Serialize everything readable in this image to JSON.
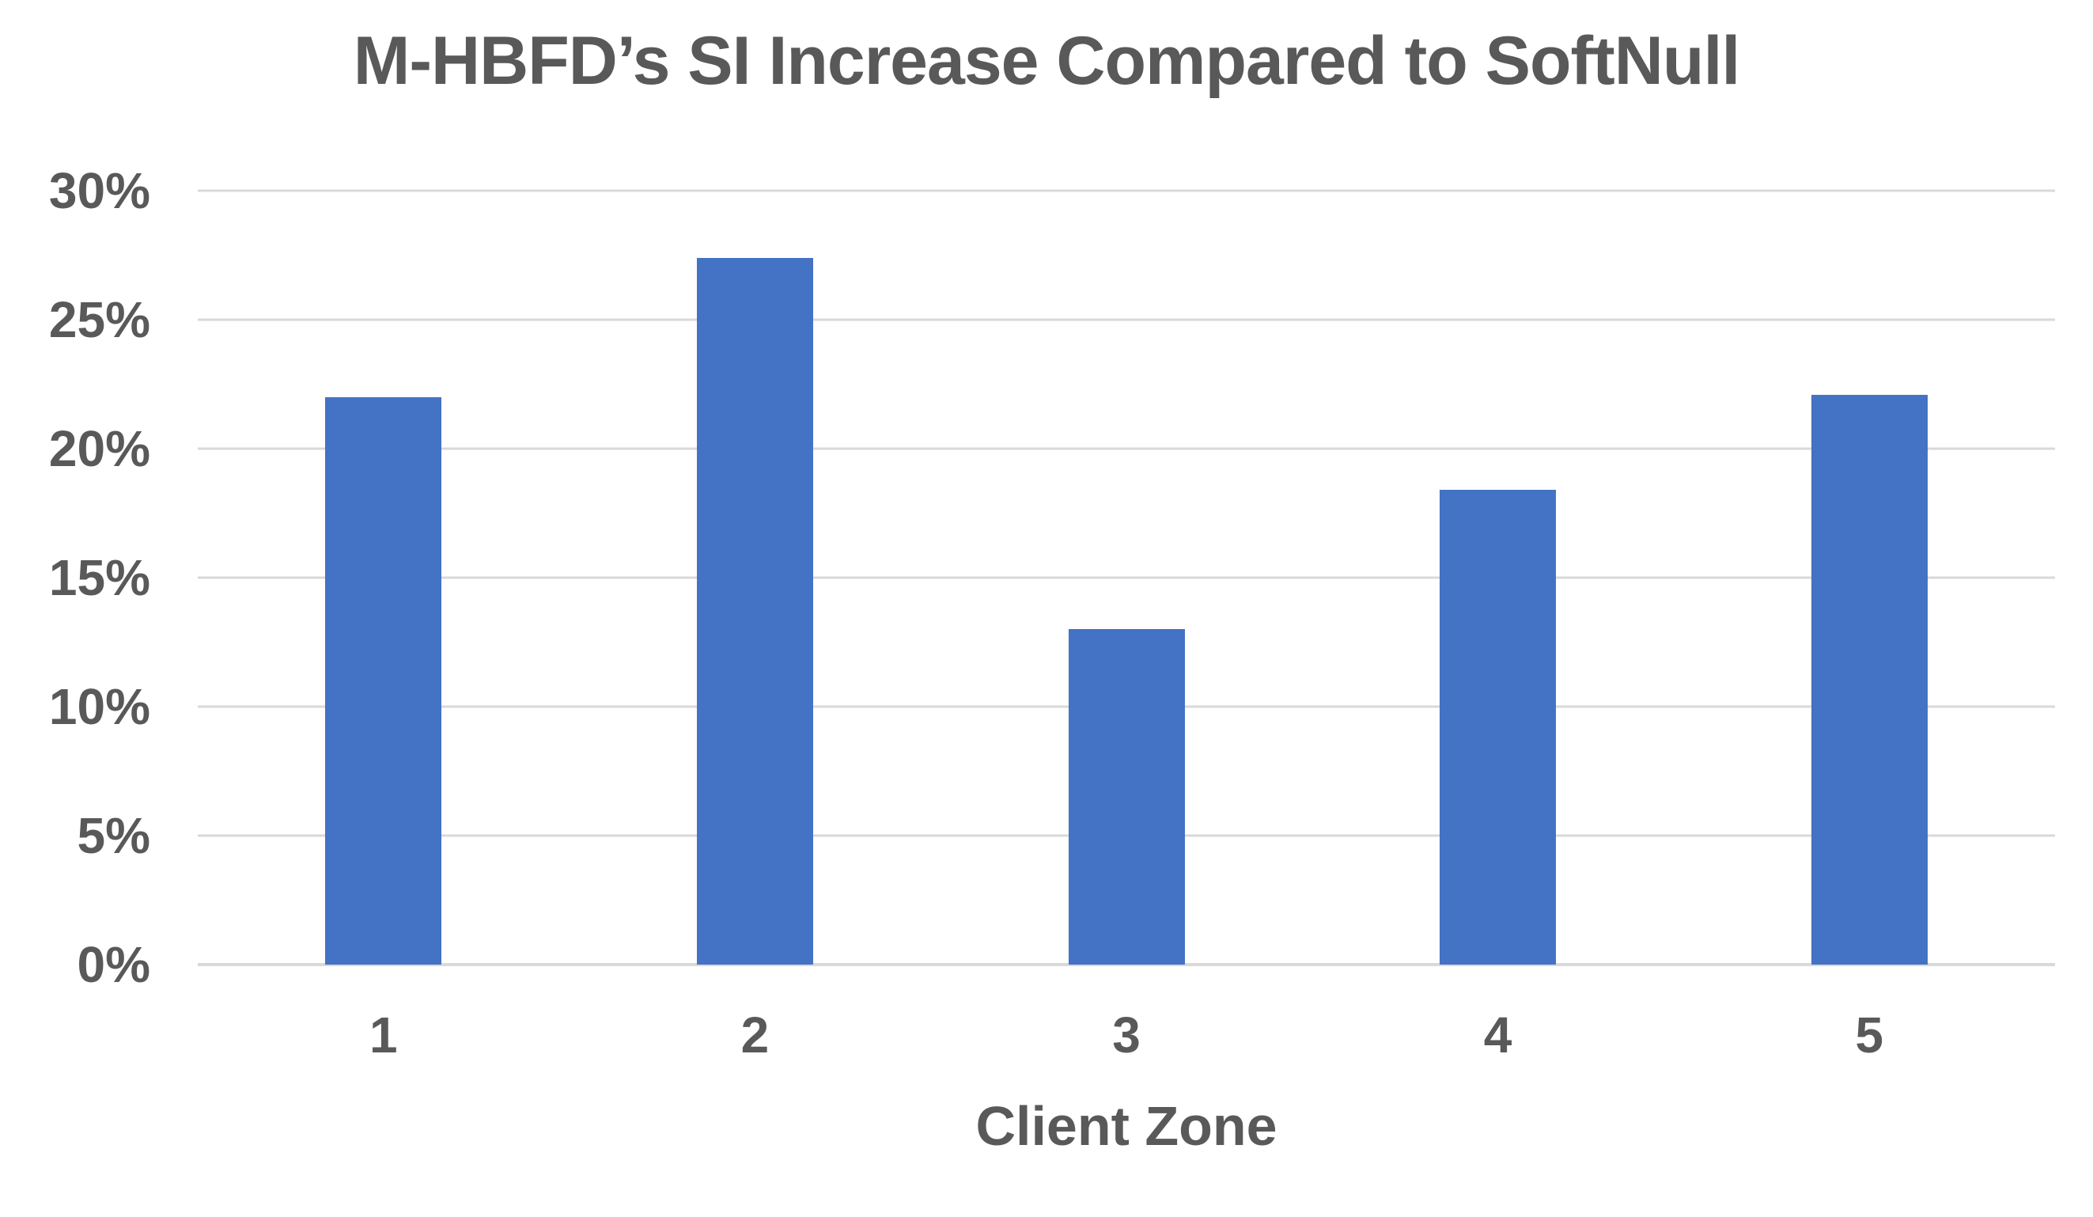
{
  "chart_data": {
    "type": "bar",
    "title": "M-HBFD’s SI Increase Compared to SoftNull",
    "xlabel": "Client Zone",
    "ylabel": "",
    "categories": [
      "1",
      "2",
      "3",
      "4",
      "5"
    ],
    "values": [
      22.0,
      27.4,
      13.0,
      18.4,
      22.1
    ],
    "value_unit": "%",
    "ylim": [
      0,
      30
    ],
    "ytick_step": 5,
    "ytick_labels": [
      "0%",
      "5%",
      "10%",
      "15%",
      "20%",
      "25%",
      "30%"
    ],
    "grid": true,
    "legend_position": "none",
    "colors": {
      "bar": "#4472C4",
      "gridline": "#D9D9D9",
      "text": "#595959",
      "background": "#FFFFFF"
    }
  }
}
